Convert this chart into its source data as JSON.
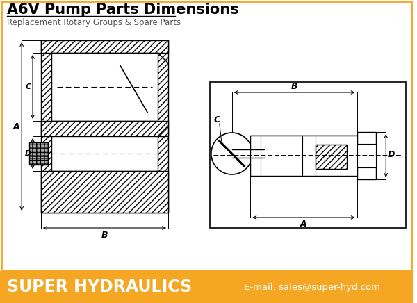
{
  "title": "A6V Pump Parts Dimensions",
  "subtitle": "Replacement Rotary Groups & Spare Parts",
  "footer_text": "SUPER HYDRAULICS",
  "footer_email": "E-mail: sales@super-hyd.com",
  "footer_bg": "#F5A623",
  "bg_color": "#FFFFFF",
  "title_fontsize": 15,
  "subtitle_fontsize": 8.5,
  "footer_fontsize": 17,
  "footer_email_fontsize": 9.5,
  "lw": 1.0,
  "hatch_lw": 0.5
}
